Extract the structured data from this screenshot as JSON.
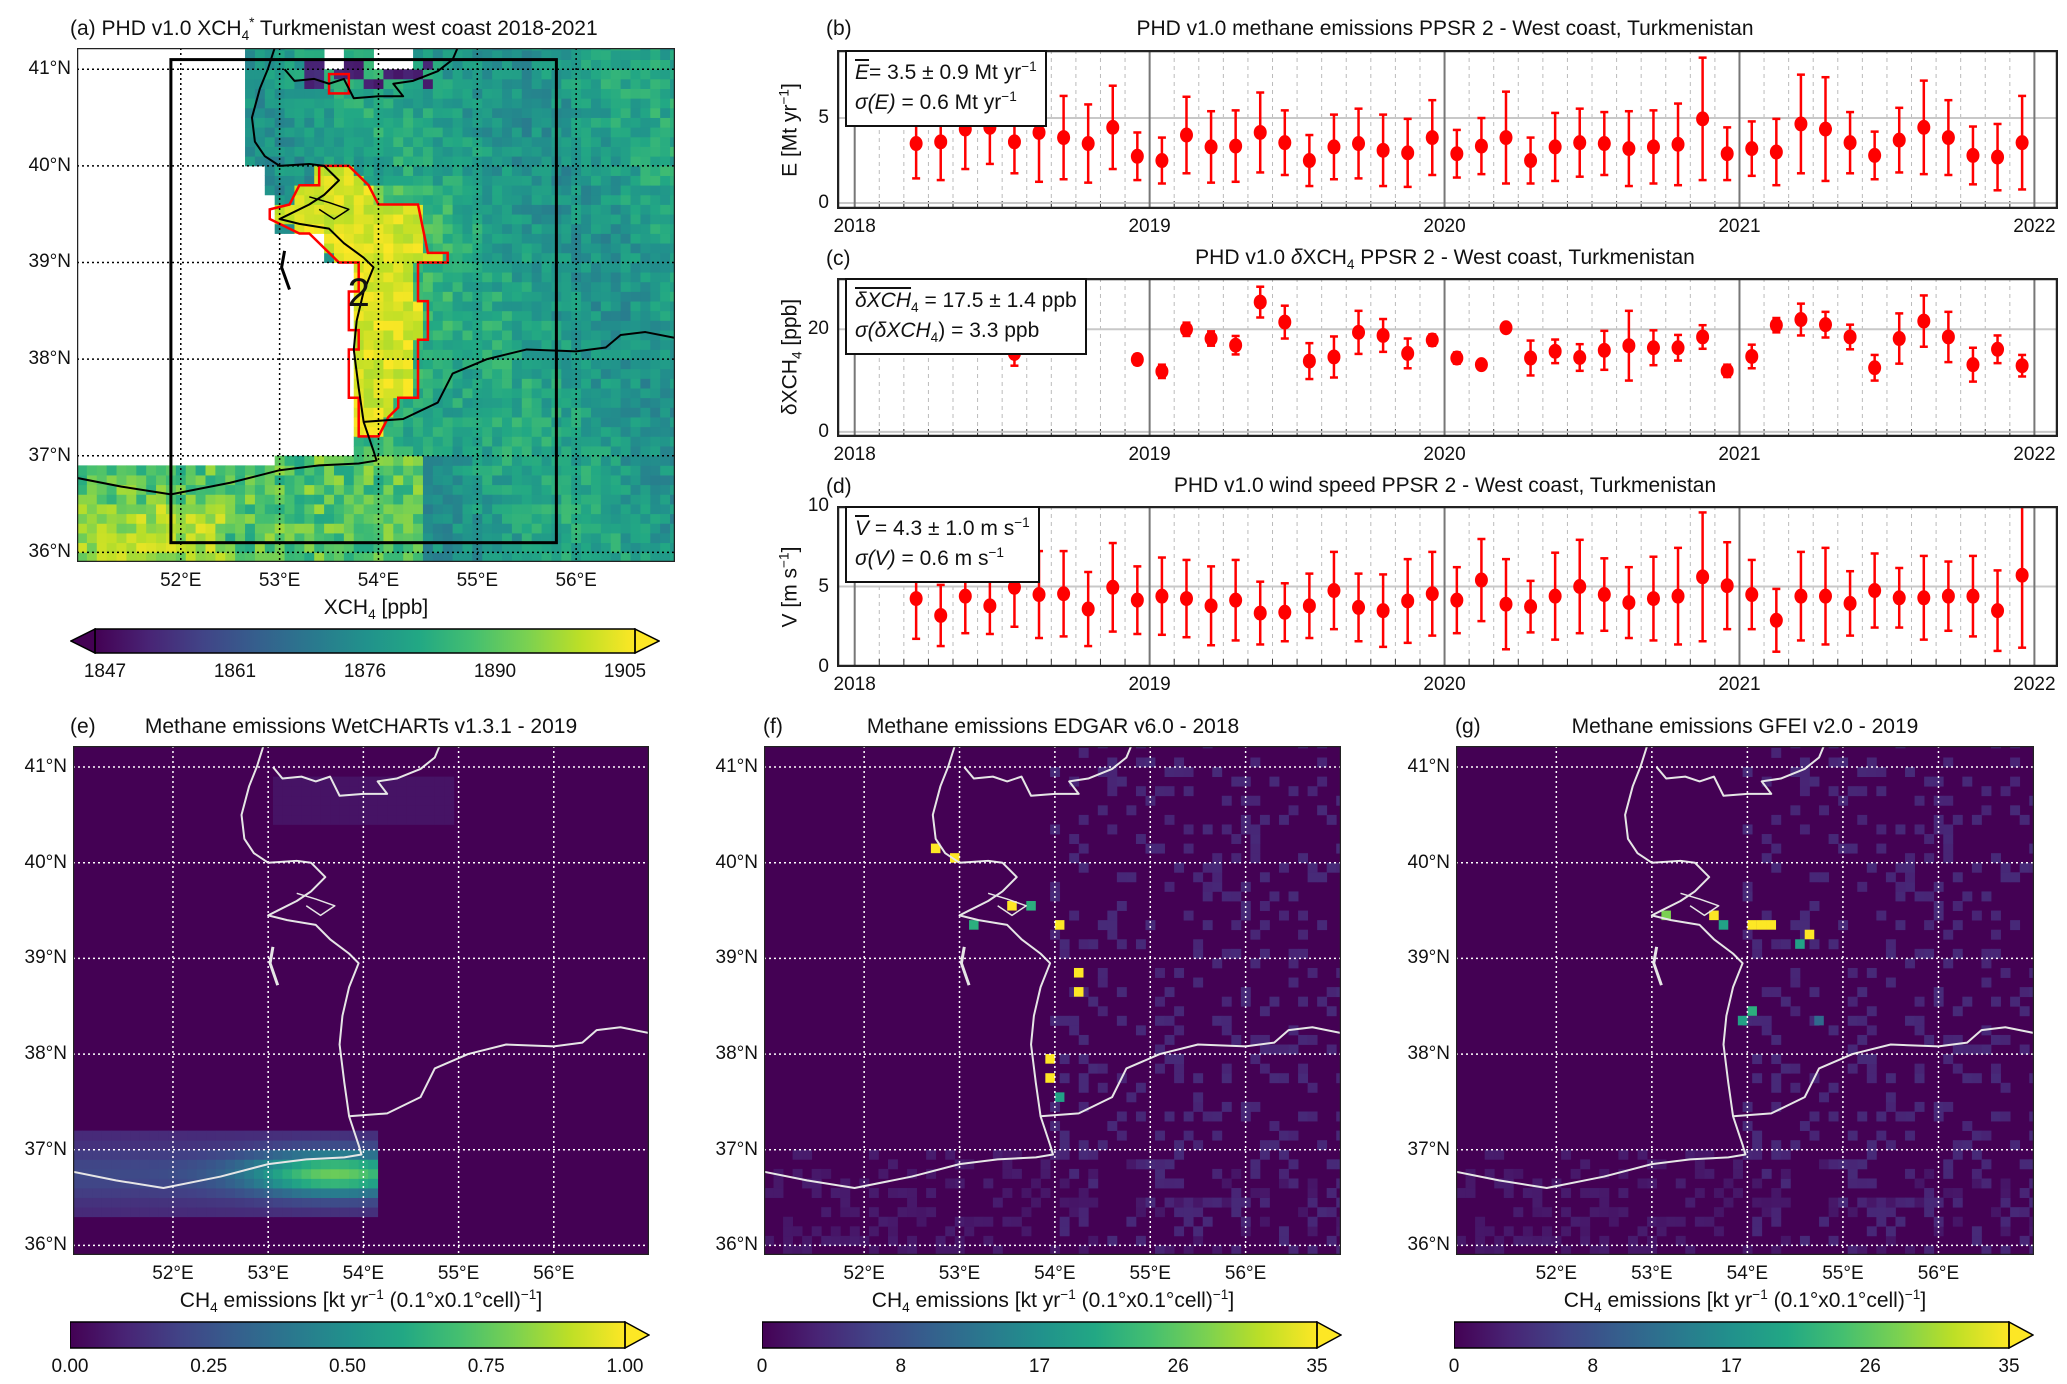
{
  "figure": {
    "map_lat_ticks": [
      "36°N",
      "37°N",
      "38°N",
      "39°N",
      "40°N",
      "41°N"
    ],
    "map_lon_ticks": [
      "52°E",
      "53°E",
      "54°E",
      "55°E",
      "56°E"
    ],
    "year_ticks": [
      "2018",
      "2019",
      "2020",
      "2021",
      "2022"
    ]
  },
  "chart_data": [
    {
      "panel": "a",
      "type": "heatmap",
      "label": "(a)",
      "title_pre": "PHD v1.0 XCH",
      "title_sub": "4",
      "title_sup": "*",
      "title_post": " Turkmenistan west coast 2018-2021",
      "lon_range": [
        51.0,
        57.0
      ],
      "lat_range": [
        35.9,
        41.2
      ],
      "lat_ticks": [
        36,
        37,
        38,
        39,
        40,
        41
      ],
      "lon_ticks": [
        52,
        53,
        54,
        55,
        56
      ],
      "region_label": "2",
      "region_outline_color": "#ff0000",
      "box_extent": {
        "lon": [
          51.9,
          55.8
        ],
        "lat": [
          36.1,
          41.1
        ]
      },
      "colorbar": {
        "label_pre": "XCH",
        "label_sub": "4",
        "label_post": " [ppb]",
        "ticks": [
          1847,
          1861,
          1876,
          1890,
          1905
        ],
        "range": [
          1847,
          1905
        ],
        "extend": "both",
        "colormap": "viridis"
      },
      "grid": true
    },
    {
      "panel": "b",
      "type": "scatter",
      "label": "(b)",
      "title": "PHD v1.0 methane emissions PPSR 2 - West coast, Turkmenistan",
      "ylabel_pre": "E [Mt yr",
      "ylabel_sup": "−1",
      "ylabel_post": "]",
      "ylim": [
        -0.35,
        9
      ],
      "yticks": [
        0,
        5
      ],
      "xlim": [
        "2018",
        "2022"
      ],
      "stats": {
        "mean_sym": "E",
        "mean_text": "= 3.5 ±  0.9 Mt yr",
        "mean_sup": "−1",
        "sigma_sym": "σ(E)",
        "sigma_text": " = 0.6 Mt yr",
        "sigma_sup": "−1"
      },
      "color": "#ff0000",
      "dates": [
        "2018-03",
        "2018-04",
        "2018-05",
        "2018-06",
        "2018-07",
        "2018-08",
        "2018-09",
        "2018-10",
        "2018-11",
        "2018-12",
        "2019-01",
        "2019-02",
        "2019-03",
        "2019-04",
        "2019-05",
        "2019-06",
        "2019-07",
        "2019-08",
        "2019-09",
        "2019-10",
        "2019-11",
        "2019-12",
        "2020-01",
        "2020-02",
        "2020-03",
        "2020-04",
        "2020-05",
        "2020-06",
        "2020-07",
        "2020-08",
        "2020-09",
        "2020-10",
        "2020-11",
        "2020-12",
        "2021-01",
        "2021-02",
        "2021-03",
        "2021-04",
        "2021-05",
        "2021-06",
        "2021-07",
        "2021-08",
        "2021-09",
        "2021-10",
        "2021-11",
        "2021-12"
      ],
      "values": [
        3.5,
        3.6,
        4.35,
        4.45,
        3.6,
        4.15,
        3.85,
        3.5,
        4.45,
        2.75,
        2.5,
        4.0,
        3.3,
        3.35,
        4.15,
        3.55,
        2.5,
        3.3,
        3.5,
        3.1,
        2.95,
        3.85,
        2.9,
        3.35,
        3.85,
        2.5,
        3.3,
        3.55,
        3.5,
        3.2,
        3.3,
        3.45,
        4.95,
        2.9,
        3.2,
        3.0,
        4.65,
        4.35,
        3.55,
        2.8,
        3.7,
        4.45,
        3.85,
        2.8,
        2.7,
        3.55
      ],
      "errors": [
        2.05,
        2.25,
        2.35,
        2.15,
        1.85,
        2.9,
        2.45,
        2.3,
        2.45,
        1.4,
        1.35,
        2.25,
        2.1,
        2.1,
        2.35,
        1.9,
        1.5,
        1.9,
        2.05,
        2.1,
        2.0,
        2.2,
        1.4,
        1.65,
        2.7,
        1.35,
        2.0,
        2.0,
        1.85,
        2.2,
        2.15,
        2.4,
        3.6,
        1.55,
        1.6,
        1.95,
        2.9,
        3.05,
        1.8,
        1.4,
        1.9,
        2.75,
        2.2,
        1.7,
        1.95,
        2.75
      ]
    },
    {
      "panel": "c",
      "type": "scatter",
      "label": "(c)",
      "title_pre": "PHD v1.0 ",
      "title_it": "δ",
      "title_mid": "XCH",
      "title_sub": "4",
      "title_post": " PPSR 2 - West coast, Turkmenistan",
      "ylabel_pre": "δXCH",
      "ylabel_sub": "4",
      "ylabel_post": " [ppb]",
      "ylim": [
        -1,
        30
      ],
      "yticks": [
        0,
        20
      ],
      "xlim": [
        "2018",
        "2022"
      ],
      "stats": {
        "mean_sym": "δXCH",
        "mean_sub": "4",
        "mean_text": " =  17.5 ±  1.4 ppb",
        "sigma_pre": "σ(δXCH",
        "sigma_sub": "4",
        "sigma_text": ") = 3.3 ppb"
      },
      "color": "#ff0000",
      "dates": [
        "2018-03",
        "2018-04",
        "2018-05",
        "2018-06",
        "2018-07",
        "2018-08",
        "2018-09",
        "2018-10",
        "2018-11",
        "2018-12",
        "2019-01",
        "2019-02",
        "2019-03",
        "2019-04",
        "2019-05",
        "2019-06",
        "2019-07",
        "2019-08",
        "2019-09",
        "2019-10",
        "2019-11",
        "2019-12",
        "2020-01",
        "2020-02",
        "2020-03",
        "2020-04",
        "2020-05",
        "2020-06",
        "2020-07",
        "2020-08",
        "2020-09",
        "2020-10",
        "2020-11",
        "2020-12",
        "2021-01",
        "2021-02",
        "2021-03",
        "2021-04",
        "2021-05",
        "2021-06",
        "2021-07",
        "2021-08",
        "2021-09",
        "2021-10",
        "2021-11",
        "2021-12"
      ],
      "values": [
        null,
        null,
        null,
        null,
        15.3,
        null,
        null,
        null,
        null,
        14.1,
        11.8,
        20.0,
        18.2,
        16.9,
        25.3,
        21.4,
        13.8,
        14.6,
        19.4,
        18.8,
        15.3,
        17.9,
        14.4,
        13.1,
        20.3,
        14.4,
        15.7,
        14.5,
        15.9,
        16.8,
        16.4,
        16.4,
        18.5,
        11.9,
        14.7,
        20.8,
        21.9,
        20.9,
        18.5,
        12.5,
        18.2,
        21.6,
        18.5,
        13.1,
        16.1,
        12.9
      ],
      "errors": [
        null,
        null,
        null,
        null,
        2.4,
        null,
        null,
        null,
        null,
        1.0,
        1.3,
        1.3,
        1.4,
        1.8,
        3.0,
        3.2,
        3.5,
        4.0,
        4.2,
        3.2,
        2.9,
        1.1,
        1.1,
        0.8,
        0.8,
        3.4,
        2.3,
        2.6,
        3.8,
        6.8,
        3.4,
        2.5,
        2.3,
        1.2,
        2.3,
        1.4,
        3.1,
        2.5,
        2.4,
        2.5,
        4.9,
        5.0,
        4.9,
        3.3,
        2.7,
        2.1
      ]
    },
    {
      "panel": "d",
      "type": "scatter",
      "label": "(d)",
      "title": "PHD v1.0 wind speed PPSR 2 - West coast, Turkmenistan",
      "ylabel_pre": "V [m s",
      "ylabel_sup": "−1",
      "ylabel_post": "]",
      "ylim": [
        0,
        10
      ],
      "yticks": [
        0,
        5,
        10
      ],
      "xlim": [
        "2018",
        "2022"
      ],
      "stats": {
        "mean_sym": "V",
        "mean_text": " =  4.3 ±  1.0 m s",
        "mean_sup": "−1",
        "sigma_sym": "σ(V)",
        "sigma_text": " = 0.6 m s",
        "sigma_sup": "−1"
      },
      "color": "#ff0000",
      "dates": [
        "2018-03",
        "2018-04",
        "2018-05",
        "2018-06",
        "2018-07",
        "2018-08",
        "2018-09",
        "2018-10",
        "2018-11",
        "2018-12",
        "2019-01",
        "2019-02",
        "2019-03",
        "2019-04",
        "2019-05",
        "2019-06",
        "2019-07",
        "2019-08",
        "2019-09",
        "2019-10",
        "2019-11",
        "2019-12",
        "2020-01",
        "2020-02",
        "2020-03",
        "2020-04",
        "2020-05",
        "2020-06",
        "2020-07",
        "2020-08",
        "2020-09",
        "2020-10",
        "2020-11",
        "2020-12",
        "2021-01",
        "2021-02",
        "2021-03",
        "2021-04",
        "2021-05",
        "2021-06",
        "2021-07",
        "2021-08",
        "2021-09",
        "2021-10",
        "2021-11",
        "2021-12"
      ],
      "values": [
        4.25,
        3.2,
        4.4,
        3.8,
        4.95,
        4.5,
        4.55,
        3.6,
        4.95,
        4.15,
        4.4,
        4.25,
        3.8,
        4.15,
        3.35,
        3.4,
        3.8,
        4.75,
        3.7,
        3.5,
        4.1,
        4.55,
        4.15,
        5.4,
        3.9,
        3.75,
        4.4,
        5.0,
        4.5,
        4.0,
        4.25,
        4.4,
        5.6,
        5.05,
        4.5,
        2.9,
        4.4,
        4.4,
        3.95,
        4.75,
        4.3,
        4.3,
        4.4,
        4.4,
        3.5,
        5.7
      ],
      "errors": [
        2.5,
        1.9,
        2.3,
        1.75,
        2.45,
        2.7,
        2.65,
        2.3,
        2.75,
        2.1,
        2.4,
        2.4,
        2.45,
        2.5,
        1.95,
        1.8,
        2.0,
        2.4,
        2.1,
        2.25,
        2.6,
        2.6,
        2.05,
        2.55,
        2.8,
        1.6,
        2.7,
        2.9,
        2.25,
        2.2,
        2.6,
        3.0,
        4.0,
        2.7,
        2.15,
        1.95,
        2.75,
        3.0,
        2.0,
        2.3,
        1.85,
        2.6,
        2.15,
        2.5,
        2.5,
        4.5
      ]
    },
    {
      "panel": "e",
      "type": "heatmap",
      "label": "(e)",
      "title": "Methane emissions WetCHARTs v1.3.1 - 2019",
      "colorbar": {
        "label_pre": "CH",
        "label_sub": "4",
        "label_mid": " emissions [kt yr",
        "label_sup1": "−1",
        "label_mid2": " (0.1°x0.1°cell)",
        "label_sup2": "−1",
        "label_post": "]",
        "ticks": [
          "0.00",
          "0.25",
          "0.50",
          "0.75",
          "1.00"
        ],
        "range": [
          0,
          1
        ],
        "extend": "max",
        "colormap": "viridis"
      },
      "hotspot_band": {
        "lon": [
          51.0,
          54.2
        ],
        "lat": [
          36.3,
          37.2
        ],
        "peak_value": 0.8
      },
      "grid": true
    },
    {
      "panel": "f",
      "type": "heatmap",
      "label": "(f)",
      "title": "Methane emissions EDGAR v6.0 - 2018",
      "colorbar": {
        "label_pre": "CH",
        "label_sub": "4",
        "label_mid": " emissions [kt yr",
        "label_sup1": "−1",
        "label_mid2": " (0.1°x0.1°cell)",
        "label_sup2": "−1",
        "label_post": "]",
        "ticks": [
          "0",
          "8",
          "17",
          "26",
          "35"
        ],
        "range": [
          0,
          35
        ],
        "extend": "max",
        "colormap": "viridis"
      },
      "hotspots": [
        {
          "lon": 52.75,
          "lat": 40.15,
          "value": 35
        },
        {
          "lon": 52.95,
          "lat": 40.05,
          "value": 35
        },
        {
          "lon": 53.55,
          "lat": 39.55,
          "value": 35
        },
        {
          "lon": 53.75,
          "lat": 39.55,
          "value": 22
        },
        {
          "lon": 53.15,
          "lat": 39.35,
          "value": 22
        },
        {
          "lon": 54.05,
          "lat": 39.35,
          "value": 35
        },
        {
          "lon": 54.25,
          "lat": 38.85,
          "value": 35
        },
        {
          "lon": 54.25,
          "lat": 38.65,
          "value": 35
        },
        {
          "lon": 53.95,
          "lat": 37.95,
          "value": 35
        },
        {
          "lon": 53.95,
          "lat": 37.75,
          "value": 35
        },
        {
          "lon": 54.05,
          "lat": 37.55,
          "value": 20
        }
      ],
      "grid": true
    },
    {
      "panel": "g",
      "type": "heatmap",
      "label": "(g)",
      "title": "Methane emissions GFEI v2.0 - 2019",
      "colorbar": {
        "label_pre": "CH",
        "label_sub": "4",
        "label_mid": " emissions [kt yr",
        "label_sup1": "−1",
        "label_mid2": " (0.1°x0.1°cell)",
        "label_sup2": "−1",
        "label_post": "]",
        "ticks": [
          "0",
          "8",
          "17",
          "26",
          "35"
        ],
        "range": [
          0,
          35
        ],
        "extend": "max",
        "colormap": "viridis"
      },
      "hotspots": [
        {
          "lon": 53.15,
          "lat": 39.45,
          "value": 28
        },
        {
          "lon": 53.65,
          "lat": 39.45,
          "value": 35
        },
        {
          "lon": 53.75,
          "lat": 39.35,
          "value": 20
        },
        {
          "lon": 54.05,
          "lat": 39.35,
          "value": 35
        },
        {
          "lon": 54.15,
          "lat": 39.35,
          "value": 35
        },
        {
          "lon": 54.25,
          "lat": 39.35,
          "value": 35
        },
        {
          "lon": 54.65,
          "lat": 39.25,
          "value": 35
        },
        {
          "lon": 54.55,
          "lat": 39.15,
          "value": 20
        },
        {
          "lon": 54.05,
          "lat": 38.45,
          "value": 22
        },
        {
          "lon": 53.95,
          "lat": 38.35,
          "value": 20
        },
        {
          "lon": 54.75,
          "lat": 38.35,
          "value": 12
        }
      ],
      "grid": true
    }
  ]
}
